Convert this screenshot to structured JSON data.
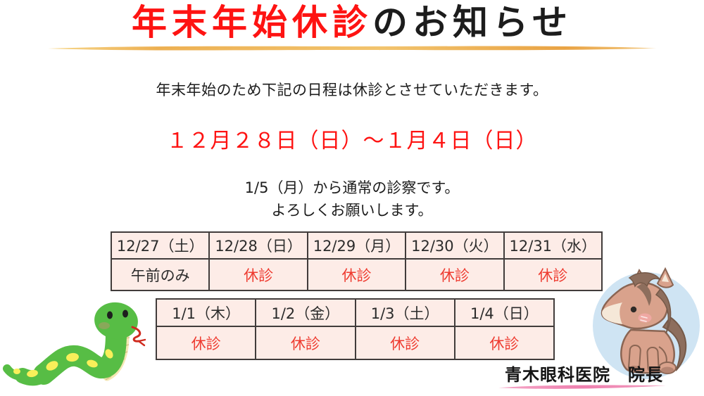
{
  "title": {
    "highlight": "年末年始休診",
    "rest": "のお知らせ"
  },
  "intro": "年末年始のため下記の日程は休診とさせていただきます。",
  "closure_period": "１２月２８日（日）～１月４日（日）",
  "resume": {
    "line1": "1/5（月）から通常の診察です。",
    "line2": "よろしくお願いします。"
  },
  "schedule_tables": [
    {
      "headers": [
        "12/27（土）",
        "12/28（日）",
        "12/29（月）",
        "12/30（火）",
        "12/31（水）"
      ],
      "cells": [
        {
          "text": "午前のみ",
          "closed": false
        },
        {
          "text": "休診",
          "closed": true
        },
        {
          "text": "休診",
          "closed": true
        },
        {
          "text": "休診",
          "closed": true
        },
        {
          "text": "休診",
          "closed": true
        }
      ]
    },
    {
      "headers": [
        "1/1（木）",
        "1/2（金）",
        "1/3（土）",
        "1/4（日）"
      ],
      "cells": [
        {
          "text": "休診",
          "closed": true
        },
        {
          "text": "休診",
          "closed": true
        },
        {
          "text": "休診",
          "closed": true
        },
        {
          "text": "休診",
          "closed": true
        }
      ]
    }
  ],
  "signature": "青木眼科医院　院長",
  "illustrations": {
    "left": "green-snake",
    "right": "brown-horse-foal-in-blue-circle"
  },
  "colors": {
    "accent_red": "#fe1312",
    "closed_red": "#ee3b30",
    "table_bg": "#fdece7",
    "table_border": "#413c3b",
    "title_underline_gold": "#edb052",
    "signature_underline_pink": "#ee7fae",
    "horse_circle_bg": "#cfe4f3",
    "snake_green": "#57bd45"
  }
}
